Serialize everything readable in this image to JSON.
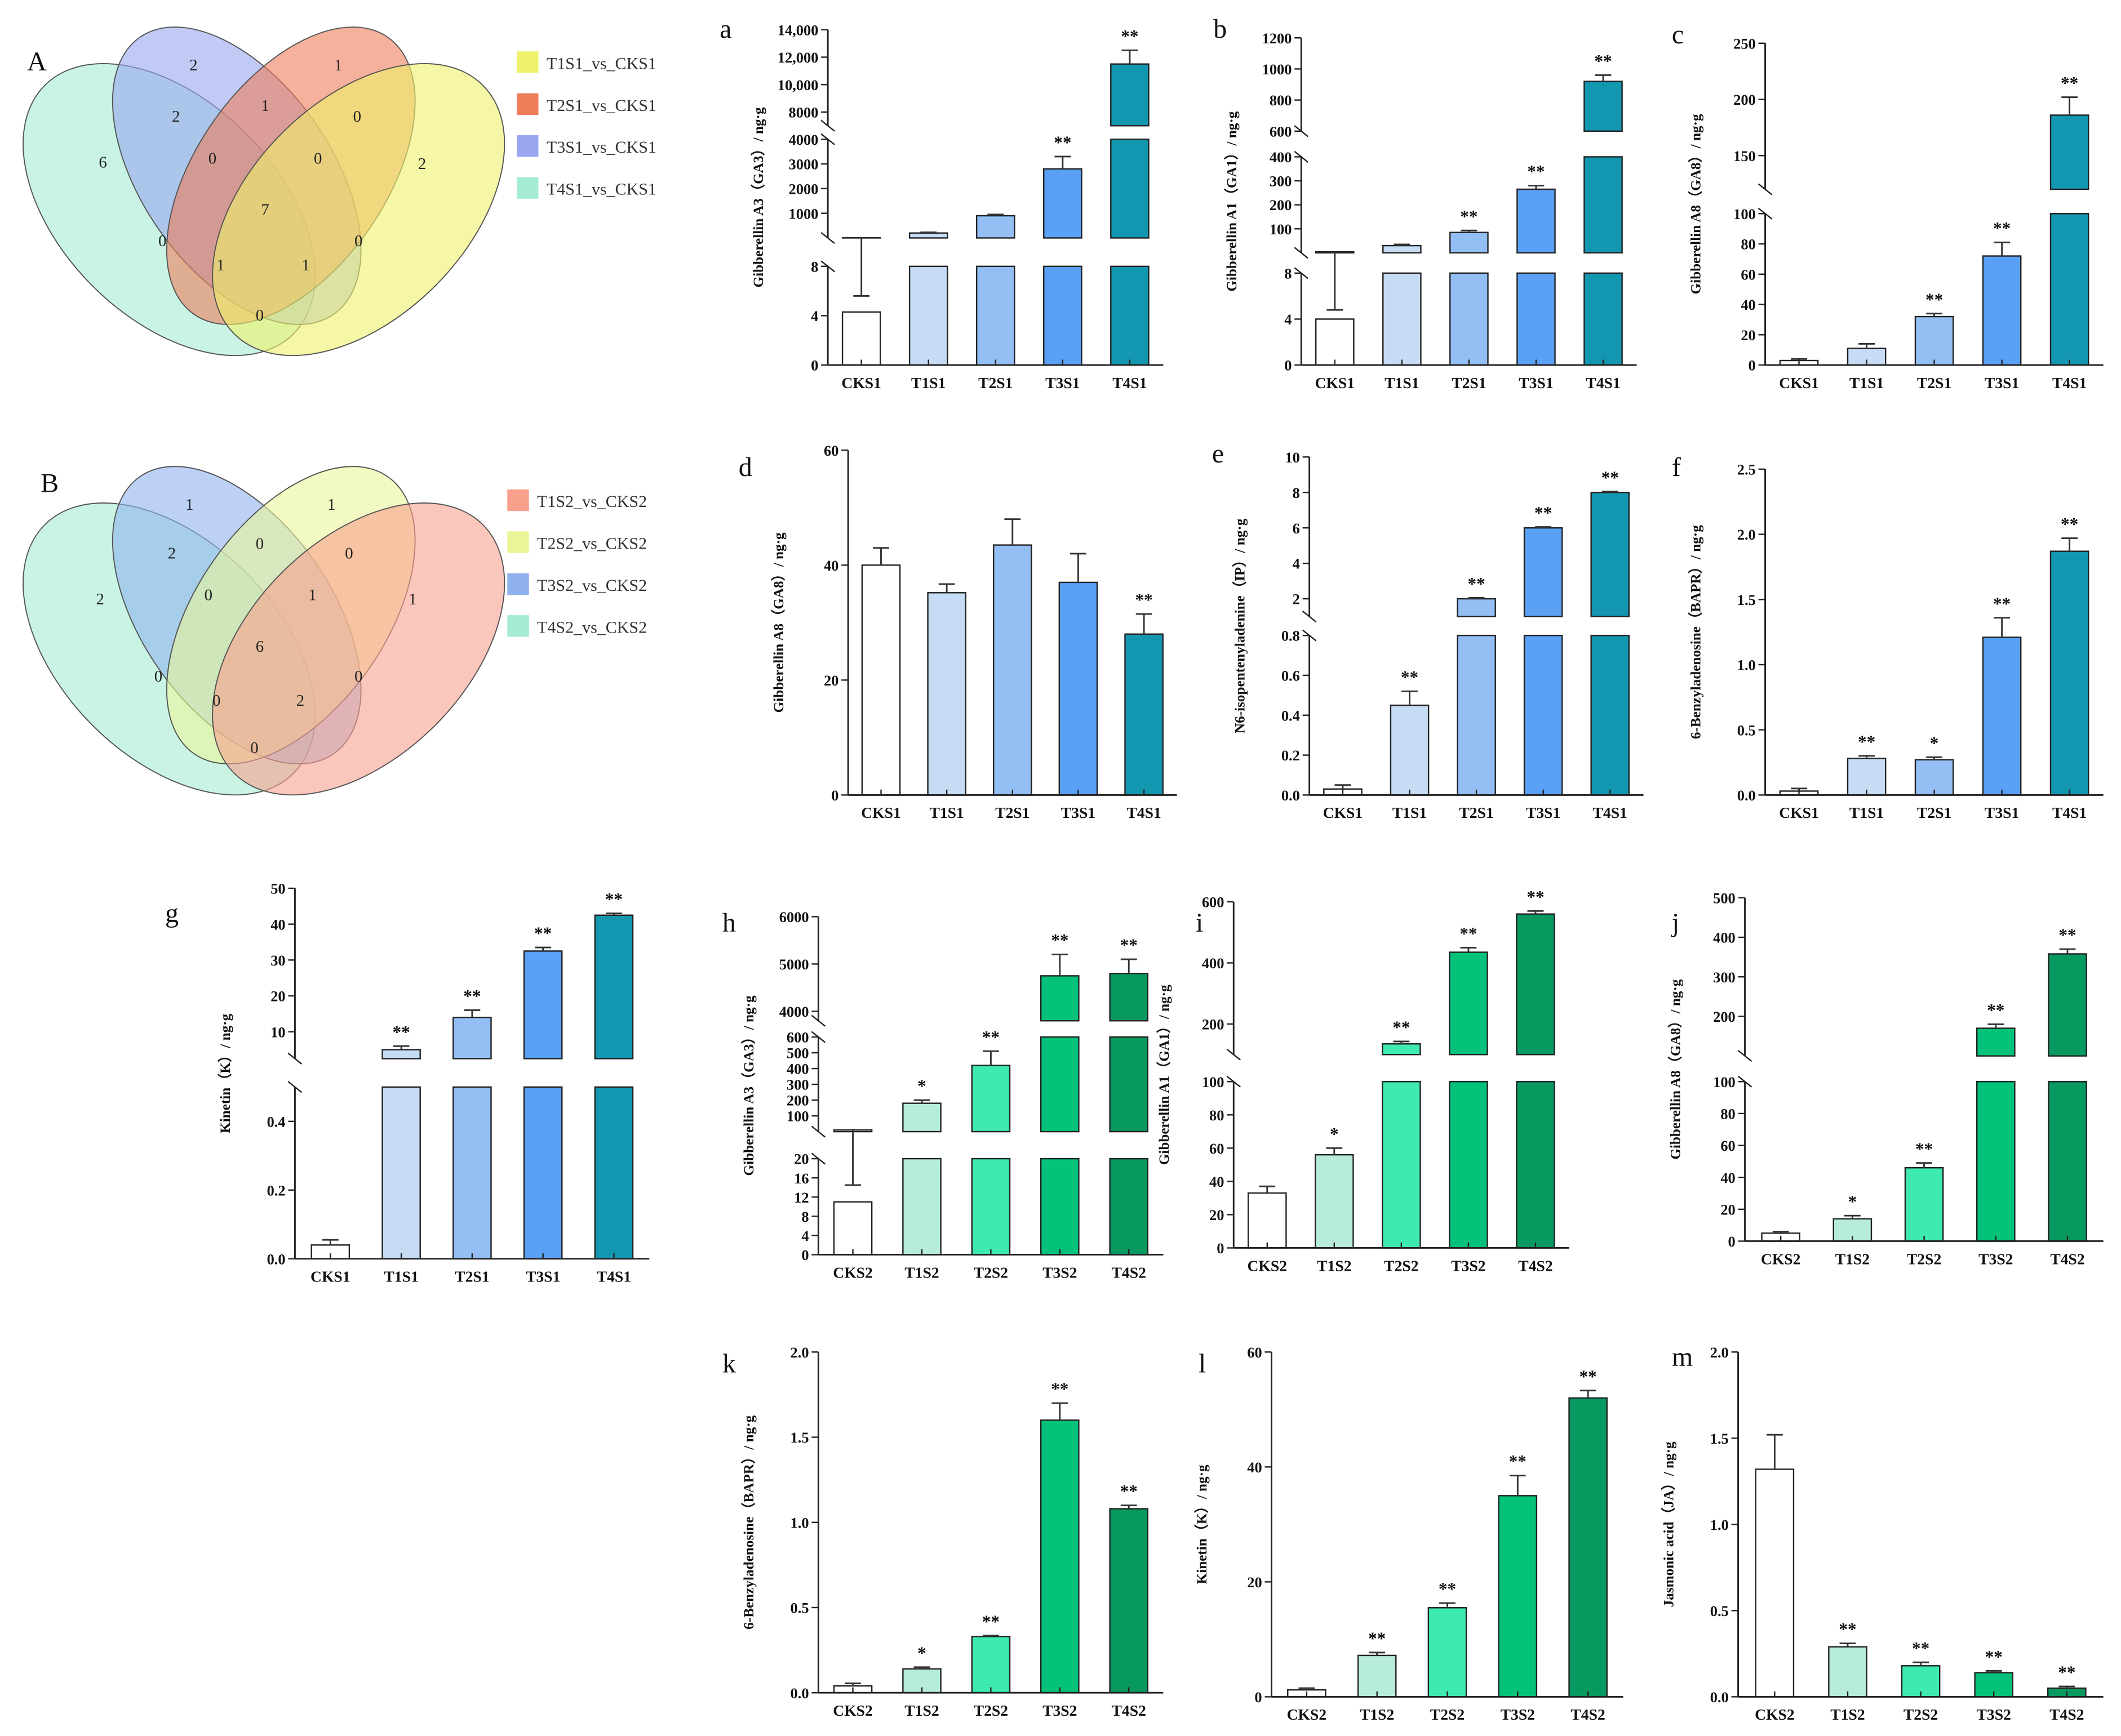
{
  "venns": [
    {
      "panel": "A",
      "legend": [
        "T1S1_vs_CKS1",
        "T2S1_vs_CKS1",
        "T3S1_vs_CKS1",
        "T4S1_vs_CKS1"
      ],
      "colors": [
        "#eef26b",
        "#ee7d5a",
        "#98a7ef",
        "#a5ecd2"
      ],
      "counts": [
        "2",
        "1",
        "2",
        "1",
        "0",
        "6",
        "0",
        "0",
        "2",
        "7",
        "0",
        "1",
        "1",
        "0",
        "0"
      ]
    },
    {
      "panel": "B",
      "legend": [
        "T1S2_vs_CKS2",
        "T2S2_vs_CKS2",
        "T3S2_vs_CKS2",
        "T4S2_vs_CKS2"
      ],
      "colors": [
        "#f9a08d",
        "#ebf59a",
        "#8fb2ef",
        "#a5ecd2"
      ],
      "counts": [
        "1",
        "1",
        "2",
        "0",
        "0",
        "2",
        "0",
        "1",
        "1",
        "6",
        "0",
        "0",
        "2",
        "0",
        "0"
      ]
    }
  ],
  "chart_data": [
    {
      "panel": "a",
      "type": "bar",
      "ylabel": "Gibberellin A3（GA3）/ ng·g",
      "categories": [
        "CKS1",
        "T1S1",
        "T2S1",
        "T3S1",
        "T4S1"
      ],
      "values": [
        4.3,
        200,
        900,
        2800,
        11500
      ],
      "errors": [
        1.3,
        30,
        50,
        500,
        1000
      ],
      "significance": [
        "",
        "",
        "",
        "**",
        "**"
      ],
      "colors": [
        "#ffffff",
        "#c6dcf5",
        "#93bff5",
        "#5aa0f5",
        "#1397b0"
      ],
      "segments": [
        {
          "range": [
            0,
            8
          ],
          "ticks": [
            0,
            4,
            8
          ],
          "tick_labels": [
            "0",
            "4",
            "8"
          ]
        },
        {
          "range": [
            0,
            4000
          ],
          "ticks": [
            1000,
            2000,
            3000,
            4000
          ],
          "tick_labels": [
            "1000",
            "2000",
            "3000",
            "4000"
          ]
        },
        {
          "range": [
            7000,
            14000
          ],
          "ticks": [
            8000,
            10000,
            12000,
            14000
          ],
          "tick_labels": [
            "8000",
            "10,000",
            "12,000",
            "14,000"
          ]
        }
      ]
    },
    {
      "panel": "b",
      "type": "bar",
      "ylabel": "Gibberellin A1（GA1）/ ng·g",
      "categories": [
        "CKS1",
        "T1S1",
        "T2S1",
        "T3S1",
        "T4S1"
      ],
      "values": [
        4,
        30,
        85,
        265,
        920
      ],
      "errors": [
        0.8,
        5,
        8,
        15,
        40
      ],
      "significance": [
        "",
        "",
        "**",
        "**",
        "**"
      ],
      "colors": [
        "#ffffff",
        "#c6dcf5",
        "#93bff5",
        "#5aa0f5",
        "#1397b0"
      ],
      "segments": [
        {
          "range": [
            0,
            8
          ],
          "ticks": [
            0,
            4,
            8
          ],
          "tick_labels": [
            "0",
            "4",
            "8"
          ]
        },
        {
          "range": [
            0,
            400
          ],
          "ticks": [
            100,
            200,
            300,
            400
          ],
          "tick_labels": [
            "100",
            "200",
            "300",
            "400"
          ]
        },
        {
          "range": [
            600,
            1200
          ],
          "ticks": [
            600,
            800,
            1000,
            1200
          ],
          "tick_labels": [
            "600",
            "800",
            "1000",
            "1200"
          ]
        }
      ]
    },
    {
      "panel": "c",
      "type": "bar",
      "ylabel": "Gibberellin A8（GA8）/ ng·g",
      "categories": [
        "CKS1",
        "T1S1",
        "T2S1",
        "T3S1",
        "T4S1"
      ],
      "values": [
        3,
        11,
        32,
        72,
        186
      ],
      "errors": [
        1,
        3,
        2,
        9,
        16
      ],
      "significance": [
        "",
        "",
        "**",
        "**",
        "**"
      ],
      "colors": [
        "#ffffff",
        "#c6dcf5",
        "#93bff5",
        "#5aa0f5",
        "#1397b0"
      ],
      "segments": [
        {
          "range": [
            0,
            100
          ],
          "ticks": [
            0,
            20,
            40,
            60,
            80,
            100
          ],
          "tick_labels": [
            "0",
            "20",
            "40",
            "60",
            "80",
            "100"
          ]
        },
        {
          "range": [
            120,
            250
          ],
          "ticks": [
            150,
            200,
            250
          ],
          "tick_labels": [
            "150",
            "200",
            "250"
          ]
        }
      ]
    },
    {
      "panel": "d",
      "type": "bar",
      "ylabel": "Gibberellin A8（GA8）/ ng·g",
      "categories": [
        "CKS1",
        "T1S1",
        "T2S1",
        "T3S1",
        "T4S1"
      ],
      "values": [
        40,
        35.2,
        43.5,
        37,
        28
      ],
      "errors": [
        3,
        1.5,
        4.5,
        5,
        3.5
      ],
      "significance": [
        "",
        "",
        "",
        "",
        "**"
      ],
      "colors": [
        "#ffffff",
        "#c6dcf5",
        "#93bff5",
        "#5aa0f5",
        "#1397b0"
      ],
      "segments": [
        {
          "range": [
            0,
            60
          ],
          "ticks": [
            0,
            20,
            40,
            60
          ],
          "tick_labels": [
            "0",
            "20",
            "40",
            "60"
          ]
        }
      ]
    },
    {
      "panel": "e",
      "type": "bar",
      "ylabel": "N6-isopentenyladenine（IP）/ ng·g",
      "categories": [
        "CKS1",
        "T1S1",
        "T2S1",
        "T3S1",
        "T4S1"
      ],
      "values": [
        0.03,
        0.45,
        2,
        6,
        8
      ],
      "errors": [
        0.02,
        0.07,
        0.05,
        0.05,
        0.05
      ],
      "significance": [
        "",
        "**",
        "**",
        "**",
        "**"
      ],
      "colors": [
        "#ffffff",
        "#c6dcf5",
        "#93bff5",
        "#5aa0f5",
        "#1397b0"
      ],
      "segments": [
        {
          "range": [
            0,
            0.8
          ],
          "ticks": [
            0,
            0.2,
            0.4,
            0.6,
            0.8
          ],
          "tick_labels": [
            "0.0",
            "0.2",
            "0.4",
            "0.6",
            "0.8"
          ]
        },
        {
          "range": [
            1,
            10
          ],
          "ticks": [
            2,
            4,
            6,
            8,
            10
          ],
          "tick_labels": [
            "2",
            "4",
            "6",
            "8",
            "10"
          ]
        }
      ]
    },
    {
      "panel": "f",
      "type": "bar",
      "ylabel": "6-Benzyladenosine（BAPR）/ ng·g",
      "categories": [
        "CKS1",
        "T1S1",
        "T2S1",
        "T3S1",
        "T4S1"
      ],
      "values": [
        0.03,
        0.28,
        0.27,
        1.21,
        1.87
      ],
      "errors": [
        0.02,
        0.02,
        0.02,
        0.15,
        0.1
      ],
      "significance": [
        "",
        "**",
        "*",
        "**",
        "**"
      ],
      "colors": [
        "#ffffff",
        "#c6dcf5",
        "#93bff5",
        "#5aa0f5",
        "#1397b0"
      ],
      "segments": [
        {
          "range": [
            0,
            2.5
          ],
          "ticks": [
            0,
            0.5,
            1,
            1.5,
            2,
            2.5
          ],
          "tick_labels": [
            "0.0",
            "0.5",
            "1.0",
            "1.5",
            "2.0",
            "2.5"
          ]
        }
      ]
    },
    {
      "panel": "g",
      "type": "bar",
      "ylabel": "Kinetin（K）/ ng·g",
      "categories": [
        "CKS1",
        "T1S1",
        "T2S1",
        "T3S1",
        "T4S1"
      ],
      "values": [
        0.04,
        5,
        14,
        32.5,
        42.5
      ],
      "errors": [
        0.015,
        1,
        2,
        1,
        0.5
      ],
      "significance": [
        "",
        "**",
        "**",
        "**",
        "**"
      ],
      "colors": [
        "#ffffff",
        "#c6dcf5",
        "#93bff5",
        "#5aa0f5",
        "#1397b0"
      ],
      "segments": [
        {
          "range": [
            0,
            0.5
          ],
          "ticks": [
            0,
            0.2,
            0.4
          ],
          "tick_labels": [
            "0.0",
            "0.2",
            "0.4"
          ]
        },
        {
          "range": [
            2.5,
            50
          ],
          "ticks": [
            10,
            20,
            30,
            40,
            50
          ],
          "tick_labels": [
            "10",
            "20",
            "30",
            "40",
            "50"
          ]
        }
      ]
    },
    {
      "panel": "h",
      "type": "bar",
      "ylabel": "Gibberellin A3（GA3）/ ng·g",
      "categories": [
        "CKS2",
        "T1S2",
        "T2S2",
        "T3S2",
        "T4S2"
      ],
      "values": [
        11,
        180,
        420,
        4750,
        4800
      ],
      "errors": [
        3.5,
        20,
        90,
        450,
        300
      ],
      "significance": [
        "",
        "*",
        "**",
        "**",
        "**"
      ],
      "colors": [
        "#ffffff",
        "#b6ecd8",
        "#3eeab0",
        "#05c27a",
        "#07995f"
      ],
      "segments": [
        {
          "range": [
            0,
            20
          ],
          "ticks": [
            0,
            4,
            8,
            12,
            16,
            20
          ],
          "tick_labels": [
            "0",
            "4",
            "8",
            "12",
            "16",
            "20"
          ]
        },
        {
          "range": [
            0,
            600
          ],
          "ticks": [
            100,
            200,
            300,
            400,
            500,
            600
          ],
          "tick_labels": [
            "100",
            "200",
            "300",
            "400",
            "500",
            "600"
          ]
        },
        {
          "range": [
            3800,
            6000
          ],
          "ticks": [
            4000,
            5000,
            6000
          ],
          "tick_labels": [
            "4000",
            "5000",
            "6000"
          ]
        }
      ]
    },
    {
      "panel": "i",
      "type": "bar",
      "ylabel": "Gibberellin A1（GA1）/ ng·g",
      "categories": [
        "CKS2",
        "T1S2",
        "T2S2",
        "T3S2",
        "T4S2"
      ],
      "values": [
        33,
        56,
        135,
        435,
        560
      ],
      "errors": [
        4,
        4,
        8,
        15,
        10
      ],
      "significance": [
        "",
        "*",
        "**",
        "**",
        "**"
      ],
      "colors": [
        "#ffffff",
        "#b6ecd8",
        "#3eeab0",
        "#05c27a",
        "#07995f"
      ],
      "segments": [
        {
          "range": [
            0,
            100
          ],
          "ticks": [
            0,
            20,
            40,
            60,
            80,
            100
          ],
          "tick_labels": [
            "0",
            "20",
            "40",
            "60",
            "80",
            "100"
          ]
        },
        {
          "range": [
            100,
            600
          ],
          "ticks": [
            200,
            400,
            600
          ],
          "tick_labels": [
            "200",
            "400",
            "600"
          ]
        }
      ]
    },
    {
      "panel": "j",
      "type": "bar",
      "ylabel": "Gibberellin A8（GA8）/ ng·g",
      "categories": [
        "CKS2",
        "T1S2",
        "T2S2",
        "T3S2",
        "T4S2"
      ],
      "values": [
        5,
        14,
        46,
        170,
        358
      ],
      "errors": [
        1,
        2,
        3,
        10,
        12
      ],
      "significance": [
        "",
        "*",
        "**",
        "**",
        "**"
      ],
      "colors": [
        "#ffffff",
        "#b6ecd8",
        "#3eeab0",
        "#05c27a",
        "#07995f"
      ],
      "segments": [
        {
          "range": [
            0,
            100
          ],
          "ticks": [
            0,
            20,
            40,
            60,
            80,
            100
          ],
          "tick_labels": [
            "0",
            "20",
            "40",
            "60",
            "80",
            "100"
          ]
        },
        {
          "range": [
            100,
            500
          ],
          "ticks": [
            200,
            300,
            400,
            500
          ],
          "tick_labels": [
            "200",
            "300",
            "400",
            "500"
          ]
        }
      ]
    },
    {
      "panel": "k",
      "type": "bar",
      "ylabel": "6-Benzyladenosine（BAPR）/ ng·g",
      "categories": [
        "CKS2",
        "T1S2",
        "T2S2",
        "T3S2",
        "T4S2"
      ],
      "values": [
        0.04,
        0.14,
        0.33,
        1.6,
        1.08
      ],
      "errors": [
        0.015,
        0.01,
        0.005,
        0.1,
        0.02
      ],
      "significance": [
        "",
        "*",
        "**",
        "**",
        "**"
      ],
      "colors": [
        "#ffffff",
        "#b6ecd8",
        "#3eeab0",
        "#05c27a",
        "#07995f"
      ],
      "segments": [
        {
          "range": [
            0,
            2
          ],
          "ticks": [
            0,
            0.5,
            1,
            1.5,
            2
          ],
          "tick_labels": [
            "0.0",
            "0.5",
            "1.0",
            "1.5",
            "2.0"
          ]
        }
      ]
    },
    {
      "panel": "l",
      "type": "bar",
      "ylabel": "Kinetin（K）/ ng·g",
      "categories": [
        "CKS2",
        "T1S2",
        "T2S2",
        "T3S2",
        "T4S2"
      ],
      "values": [
        1.2,
        7.2,
        15.5,
        35,
        52
      ],
      "errors": [
        0.3,
        0.5,
        0.8,
        3.5,
        1.3
      ],
      "significance": [
        "",
        "**",
        "**",
        "**",
        "**"
      ],
      "colors": [
        "#ffffff",
        "#b6ecd8",
        "#3eeab0",
        "#05c27a",
        "#07995f"
      ],
      "segments": [
        {
          "range": [
            0,
            60
          ],
          "ticks": [
            0,
            20,
            40,
            60
          ],
          "tick_labels": [
            "0",
            "20",
            "40",
            "60"
          ]
        }
      ]
    },
    {
      "panel": "m",
      "type": "bar",
      "ylabel": "Jasmonic acid（JA）/ ng·g",
      "categories": [
        "CKS2",
        "T1S2",
        "T2S2",
        "T3S2",
        "T4S2"
      ],
      "values": [
        1.32,
        0.29,
        0.18,
        0.14,
        0.05
      ],
      "errors": [
        0.2,
        0.02,
        0.02,
        0.01,
        0.01
      ],
      "significance": [
        "",
        "**",
        "**",
        "**",
        "**"
      ],
      "colors": [
        "#ffffff",
        "#b6ecd8",
        "#3eeab0",
        "#05c27a",
        "#07995f"
      ],
      "segments": [
        {
          "range": [
            0,
            2
          ],
          "ticks": [
            0,
            0.5,
            1,
            1.5,
            2
          ],
          "tick_labels": [
            "0.0",
            "0.5",
            "1.0",
            "1.5",
            "2.0"
          ]
        }
      ]
    }
  ]
}
